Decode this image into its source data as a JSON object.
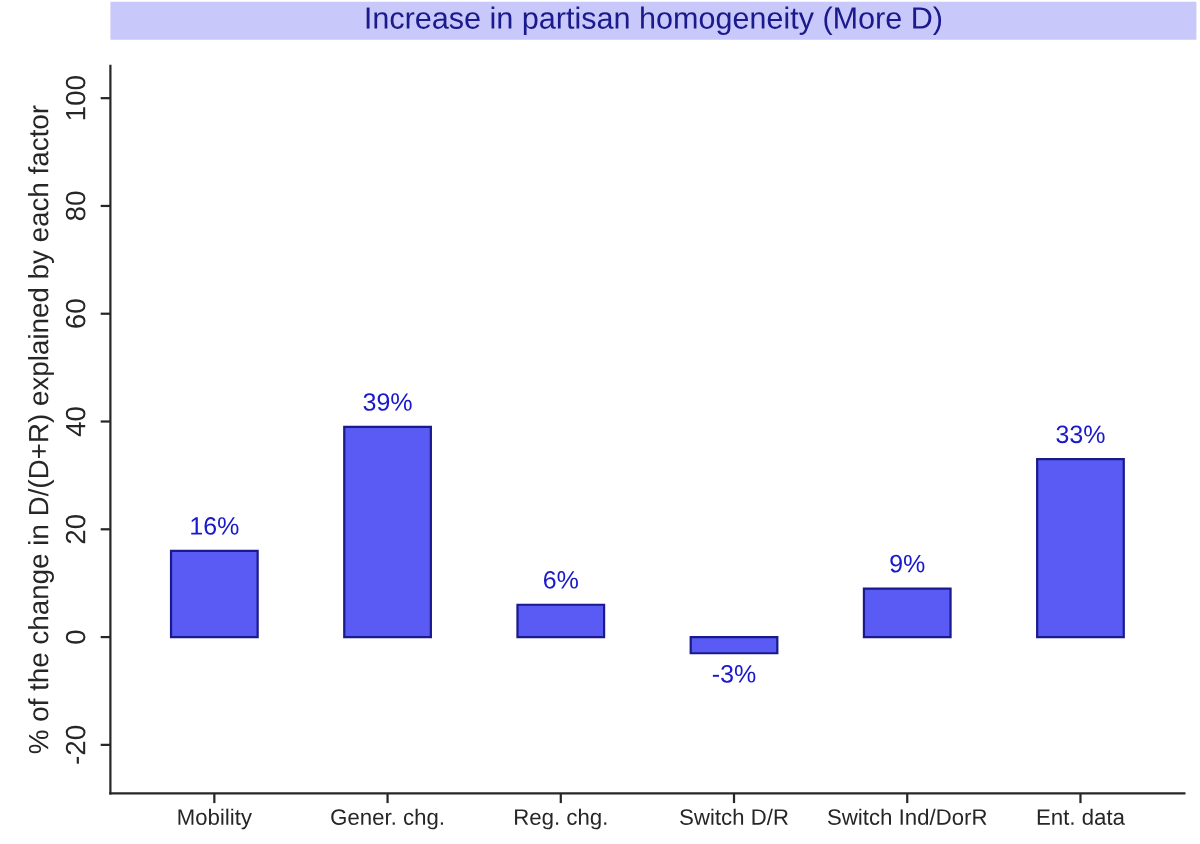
{
  "chart_data": {
    "type": "bar",
    "title": "Increase in partisan homogeneity (More D)",
    "ylabel": "% of the change in D/(D+R) explained by each factor",
    "categories": [
      "Mobility",
      "Gener. chg.",
      "Reg. chg.",
      "Switch D/R",
      "Switch Ind/DorR",
      "Ent. data"
    ],
    "values": [
      16,
      39,
      6,
      -3,
      9,
      33
    ],
    "color": "#5a5af5",
    "ylim": [
      -29,
      106
    ],
    "yticks": [
      -20,
      0,
      20,
      40,
      60,
      80,
      100
    ],
    "value_labels": [
      "16%",
      "39%",
      "6%",
      "-3%",
      "9%",
      "33%"
    ],
    "grid": false
  }
}
